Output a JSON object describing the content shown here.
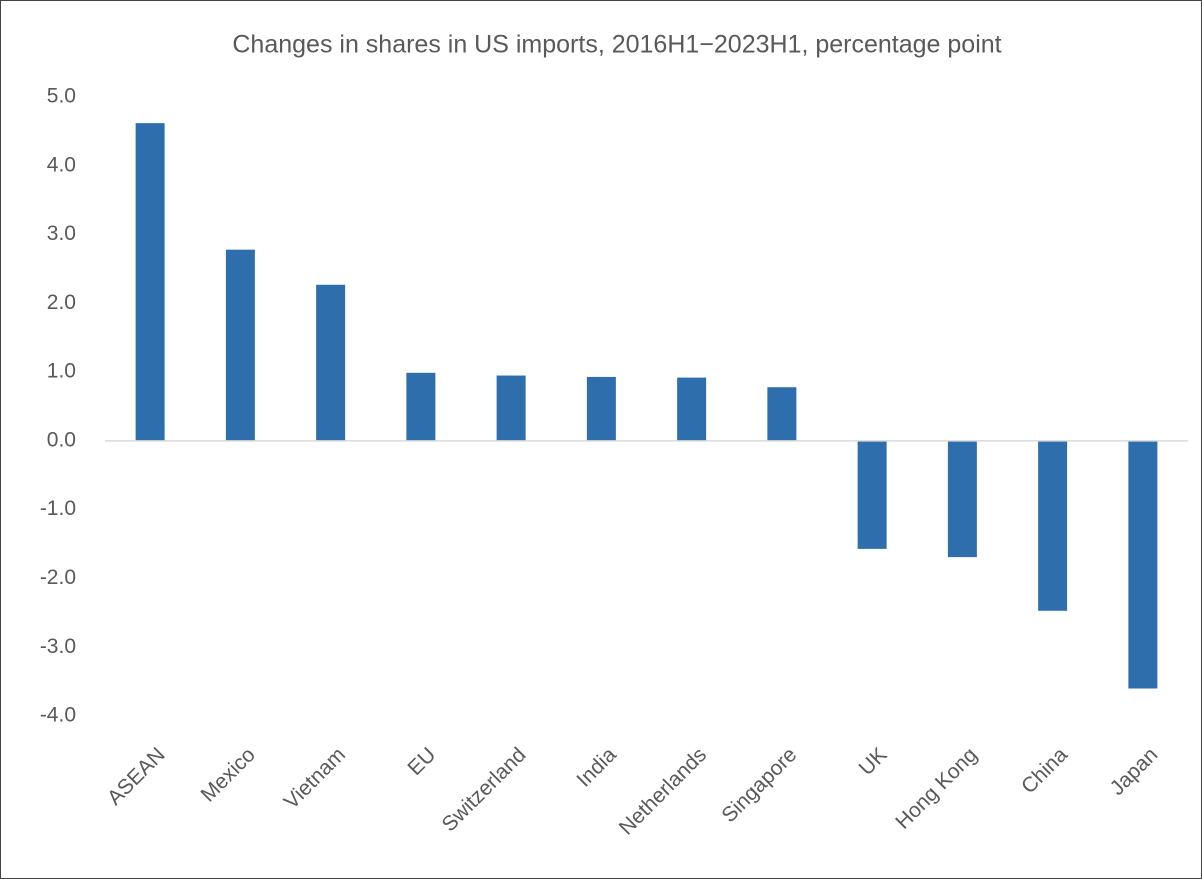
{
  "chart_data": {
    "type": "bar",
    "title": "Changes in shares in US imports, 2016H1−2023H1, percentage point",
    "categories": [
      "ASEAN",
      "Mexico",
      "Vietnam",
      "EU",
      "Switzerland",
      "India",
      "Netherlands",
      "Singapore",
      "UK",
      "Hong Kong",
      "China",
      "Japan"
    ],
    "values": [
      4.62,
      2.78,
      2.27,
      0.99,
      0.95,
      0.93,
      0.92,
      0.78,
      -1.57,
      -1.69,
      -2.47,
      -3.6
    ],
    "color": "#2e6ead",
    "ylim": [
      -4,
      5
    ],
    "yticks": [
      {
        "value": 5,
        "label": "5.0"
      },
      {
        "value": 4,
        "label": "4.0"
      },
      {
        "value": 3,
        "label": "3.0"
      },
      {
        "value": 2,
        "label": "2.0"
      },
      {
        "value": 1,
        "label": "1.0"
      },
      {
        "value": 0,
        "label": "0.0"
      },
      {
        "value": -1,
        "label": "-1.0"
      },
      {
        "value": -2,
        "label": "-2.0"
      },
      {
        "value": -3,
        "label": "-3.0"
      },
      {
        "value": -4,
        "label": "-4.0"
      }
    ],
    "grid": false
  }
}
